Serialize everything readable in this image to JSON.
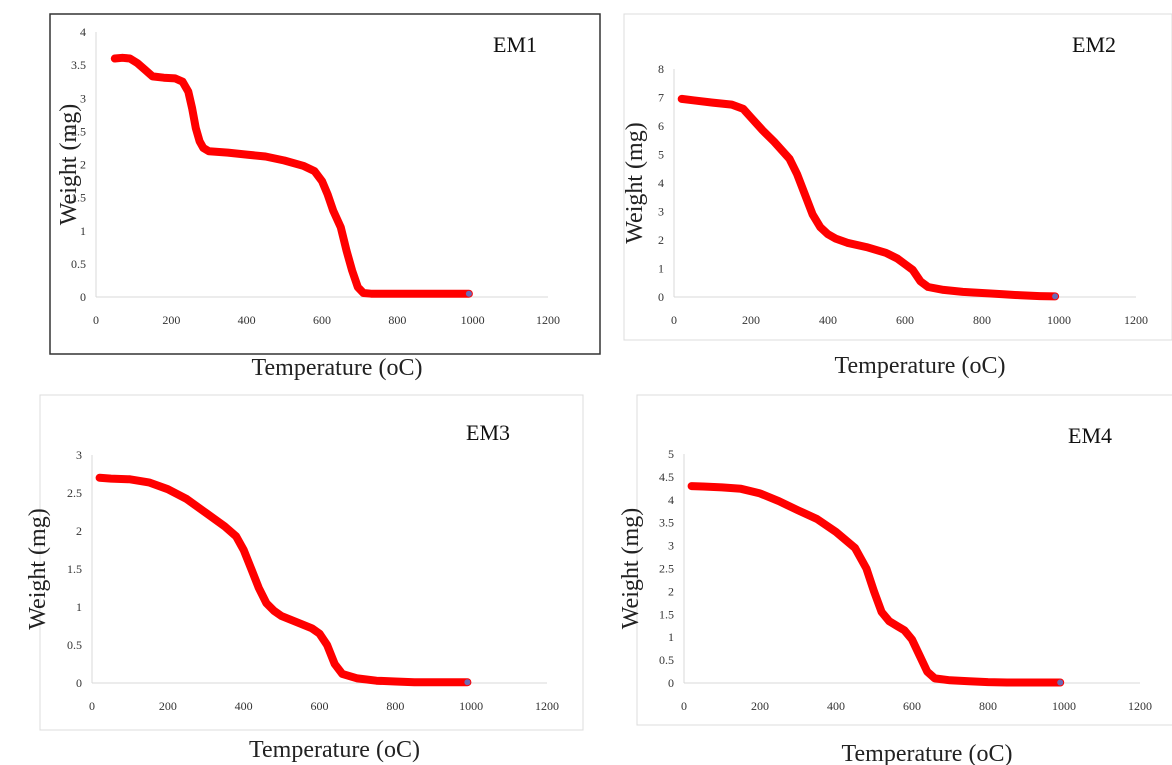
{
  "colors": {
    "curve": "#ff0000",
    "end_marker": "#6b6bb5"
  },
  "chart_data": [
    {
      "type": "line",
      "panel_label": "EM1",
      "xlabel": "Temperature (oC)",
      "ylabel": "Weight (mg)",
      "xlim": [
        0,
        1200
      ],
      "ylim": [
        0,
        4
      ],
      "x_ticks": [
        0,
        200,
        400,
        600,
        800,
        1000,
        1200
      ],
      "y_ticks": [
        0,
        0.5,
        1,
        1.5,
        2,
        2.5,
        3,
        3.5,
        4
      ],
      "y_tick_labels": [
        "0",
        "0.5",
        "1",
        "1.5",
        "2",
        "2.5",
        "3",
        "3.5",
        "4"
      ],
      "grid": false,
      "series": [
        {
          "x": [
            50,
            70,
            90,
            110,
            130,
            150,
            180,
            210,
            230,
            245,
            255,
            265,
            275,
            285,
            300,
            350,
            400,
            450,
            500,
            550,
            580,
            600,
            615,
            630,
            650,
            665,
            680,
            695,
            710,
            730,
            800,
            900,
            990
          ],
          "y": [
            3.6,
            3.61,
            3.6,
            3.53,
            3.43,
            3.33,
            3.31,
            3.3,
            3.25,
            3.1,
            2.85,
            2.55,
            2.35,
            2.25,
            2.2,
            2.18,
            2.15,
            2.12,
            2.06,
            1.98,
            1.9,
            1.75,
            1.55,
            1.3,
            1.05,
            0.7,
            0.4,
            0.15,
            0.06,
            0.05,
            0.05,
            0.05,
            0.05
          ]
        }
      ]
    },
    {
      "type": "line",
      "panel_label": "EM2",
      "xlabel": "Temperature (oC)",
      "ylabel": "Weight (mg)",
      "xlim": [
        0,
        1200
      ],
      "ylim": [
        0,
        8
      ],
      "x_ticks": [
        0,
        200,
        400,
        600,
        800,
        1000,
        1200
      ],
      "y_ticks": [
        0,
        1,
        2,
        3,
        4,
        5,
        6,
        7,
        8
      ],
      "y_tick_labels": [
        "0",
        "1",
        "2",
        "3",
        "4",
        "5",
        "6",
        "7",
        "8"
      ],
      "grid": false,
      "series": [
        {
          "x": [
            20,
            50,
            100,
            150,
            180,
            200,
            230,
            260,
            300,
            320,
            340,
            360,
            380,
            400,
            420,
            450,
            500,
            550,
            580,
            600,
            620,
            640,
            660,
            700,
            750,
            800,
            850,
            900,
            950,
            990
          ],
          "y": [
            6.95,
            6.9,
            6.82,
            6.75,
            6.6,
            6.3,
            5.85,
            5.45,
            4.85,
            4.3,
            3.6,
            2.9,
            2.45,
            2.2,
            2.05,
            1.9,
            1.75,
            1.55,
            1.35,
            1.15,
            0.95,
            0.55,
            0.35,
            0.25,
            0.18,
            0.14,
            0.1,
            0.06,
            0.03,
            0.02
          ]
        }
      ]
    },
    {
      "type": "line",
      "panel_label": "EM3",
      "xlabel": "Temperature (oC)",
      "ylabel": "Weight (mg)",
      "xlim": [
        0,
        1200
      ],
      "ylim": [
        0,
        3
      ],
      "x_ticks": [
        0,
        200,
        400,
        600,
        800,
        1000,
        1200
      ],
      "y_ticks": [
        0,
        0.5,
        1,
        1.5,
        2,
        2.5,
        3
      ],
      "y_tick_labels": [
        "0",
        "0.5",
        "1",
        "1.5",
        "2",
        "2.5",
        "3"
      ],
      "grid": false,
      "series": [
        {
          "x": [
            20,
            50,
            100,
            150,
            200,
            250,
            300,
            350,
            380,
            400,
            420,
            440,
            460,
            480,
            500,
            550,
            580,
            600,
            620,
            640,
            660,
            700,
            750,
            800,
            850,
            900,
            950,
            990
          ],
          "y": [
            2.7,
            2.69,
            2.68,
            2.64,
            2.55,
            2.42,
            2.24,
            2.06,
            1.93,
            1.75,
            1.5,
            1.25,
            1.05,
            0.95,
            0.88,
            0.78,
            0.72,
            0.65,
            0.5,
            0.25,
            0.12,
            0.06,
            0.03,
            0.02,
            0.01,
            0.01,
            0.01,
            0.01
          ]
        }
      ]
    },
    {
      "type": "line",
      "panel_label": "EM4",
      "xlabel": "Temperature (oC)",
      "ylabel": "Weight (mg)",
      "xlim": [
        0,
        1200
      ],
      "ylim": [
        0,
        5
      ],
      "x_ticks": [
        0,
        200,
        400,
        600,
        800,
        1000,
        1200
      ],
      "y_ticks": [
        0,
        0.5,
        1,
        1.5,
        2,
        2.5,
        3,
        3.5,
        4,
        4.5,
        5
      ],
      "y_tick_labels": [
        "0",
        "0.5",
        "1",
        "1.5",
        "2",
        "2.5",
        "3",
        "3.5",
        "4",
        "4.5",
        "5"
      ],
      "grid": false,
      "series": [
        {
          "x": [
            20,
            50,
            100,
            150,
            200,
            250,
            300,
            350,
            400,
            450,
            480,
            500,
            520,
            540,
            560,
            580,
            600,
            620,
            640,
            660,
            700,
            750,
            800,
            850,
            900,
            950,
            990
          ],
          "y": [
            4.3,
            4.29,
            4.27,
            4.24,
            4.14,
            3.97,
            3.77,
            3.58,
            3.3,
            2.95,
            2.5,
            2.0,
            1.55,
            1.35,
            1.25,
            1.15,
            0.95,
            0.6,
            0.25,
            0.1,
            0.06,
            0.04,
            0.02,
            0.01,
            0.01,
            0.01,
            0.01
          ]
        }
      ]
    }
  ]
}
